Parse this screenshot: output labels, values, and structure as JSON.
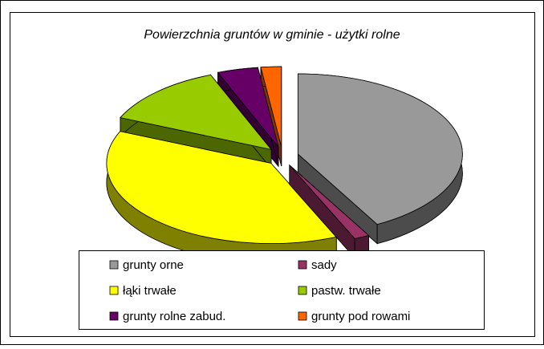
{
  "chart_data": {
    "type": "pie",
    "title": "Powierzchnia gruntów w gminie - użytki rolne",
    "categories": [
      "grunty orne",
      "sady",
      "łąki trwałe",
      "pastw. trwałe",
      "grunty rolne zabud.",
      "grunty pod rowami"
    ],
    "values": [
      42,
      1.5,
      38,
      12.5,
      4,
      2
    ],
    "colors": [
      "#999999",
      "#993366",
      "#ffff00",
      "#99cc00",
      "#660066",
      "#ff6600"
    ]
  }
}
